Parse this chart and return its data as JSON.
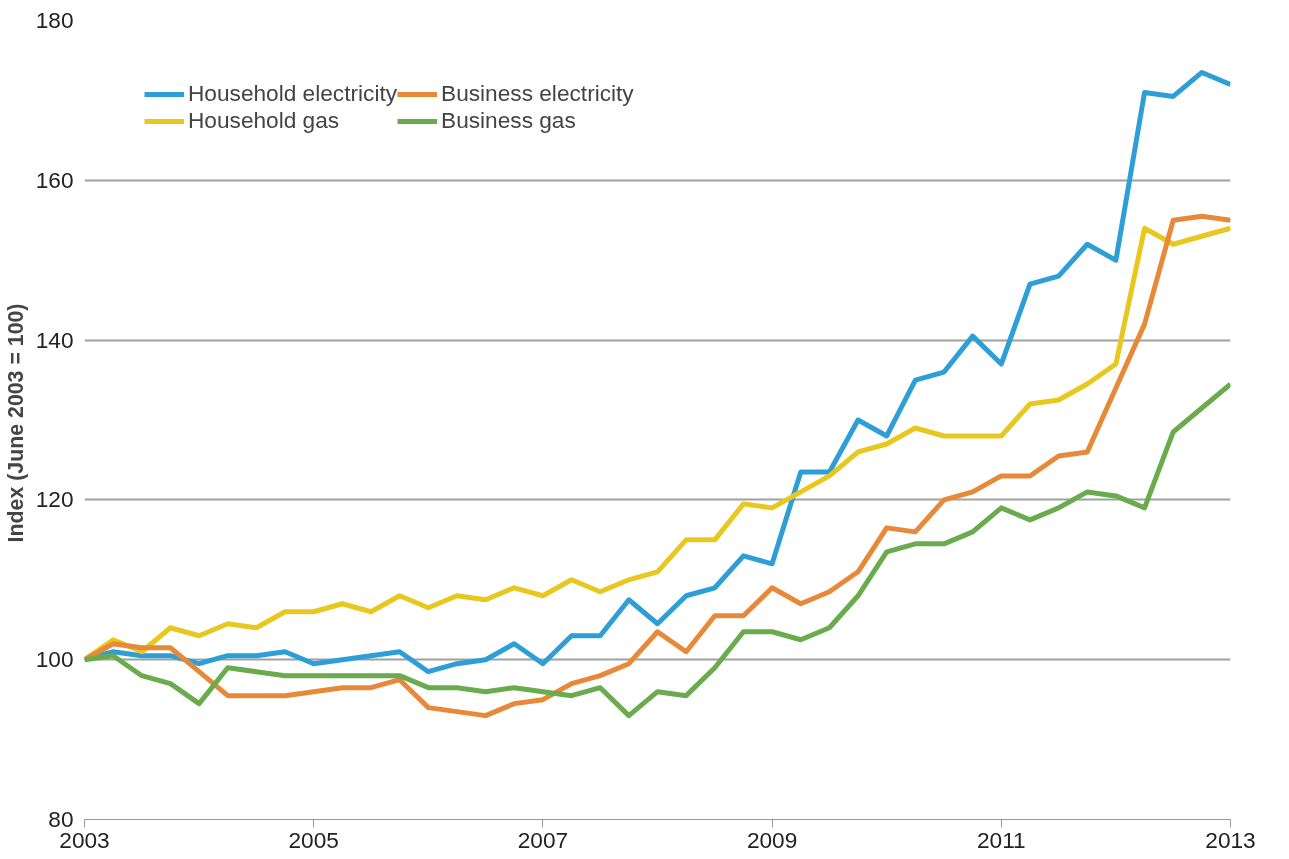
{
  "chart_data": {
    "type": "line",
    "ylabel": "Index (June 2003  = 100)",
    "xlim": [
      2003,
      2013
    ],
    "xticks": [
      2003,
      2005,
      2007,
      2009,
      2011,
      2013
    ],
    "ylim": [
      80,
      180
    ],
    "yticks": [
      80,
      100,
      120,
      140,
      160,
      180
    ],
    "grid": "y",
    "legend": "top left",
    "marker": "none",
    "line_style": "solid",
    "x": [
      2003,
      2003.25,
      2003.5,
      2003.75,
      2004,
      2004.25,
      2004.5,
      2004.75,
      2005,
      2005.25,
      2005.5,
      2005.75,
      2006,
      2006.25,
      2006.5,
      2006.75,
      2007,
      2007.25,
      2007.5,
      2007.75,
      2008,
      2008.25,
      2008.5,
      2008.75,
      2009,
      2009.25,
      2009.5,
      2009.75,
      2010,
      2010.25,
      2010.5,
      2010.75,
      2011,
      2011.25,
      2011.5,
      2011.75,
      2012,
      2012.25,
      2012.5,
      2012.75,
      2013
    ],
    "series": [
      {
        "name": "Household electricity",
        "color": "#2e9fd6",
        "values": [
          100,
          101,
          100.5,
          100.5,
          99.5,
          100.5,
          100.5,
          101,
          99.5,
          100,
          100.5,
          101,
          98.5,
          99.5,
          100,
          102,
          99.5,
          103,
          103,
          107.5,
          104.5,
          108,
          109,
          113,
          112,
          123.5,
          123.5,
          130,
          128,
          135,
          136,
          140.5,
          137,
          147,
          148,
          152,
          150,
          171,
          170.5,
          173.5,
          172
        ]
      },
      {
        "name": "Household gas",
        "color": "#e8c81e",
        "values": [
          100,
          102.5,
          101,
          104,
          103,
          104.5,
          104,
          106,
          106,
          107,
          106,
          108,
          106.5,
          108,
          107.5,
          109,
          108,
          110,
          108.5,
          110,
          111,
          115,
          115,
          119.5,
          119,
          121,
          123,
          126,
          127,
          129,
          128,
          128,
          128,
          132,
          132.5,
          134.5,
          137,
          154,
          152,
          153,
          154
        ]
      },
      {
        "name": "Business electricity",
        "color": "#e8893a",
        "values": [
          100,
          102,
          101.5,
          101.5,
          98.5,
          95.5,
          95.5,
          95.5,
          96,
          96.5,
          96.5,
          97.5,
          94,
          93.5,
          93,
          94.5,
          95,
          97,
          98,
          99.5,
          103.5,
          101,
          105.5,
          105.5,
          109,
          107,
          108.5,
          111,
          116.5,
          116,
          120,
          121,
          123,
          123,
          125.5,
          126,
          134,
          142,
          155,
          155.5,
          155
        ]
      },
      {
        "name": "Business gas",
        "color": "#6aab4e",
        "values": [
          100,
          100.5,
          98,
          97,
          94.5,
          99,
          98.5,
          98,
          98,
          98,
          98,
          98,
          96.5,
          96.5,
          96,
          96.5,
          96,
          95.5,
          96.5,
          93,
          96,
          95.5,
          99,
          103.5,
          103.5,
          102.5,
          104,
          108,
          113.5,
          114.5,
          114.5,
          116,
          119,
          117.5,
          119,
          121,
          120.5,
          119,
          128.5,
          131.5,
          134.5
        ]
      }
    ]
  }
}
